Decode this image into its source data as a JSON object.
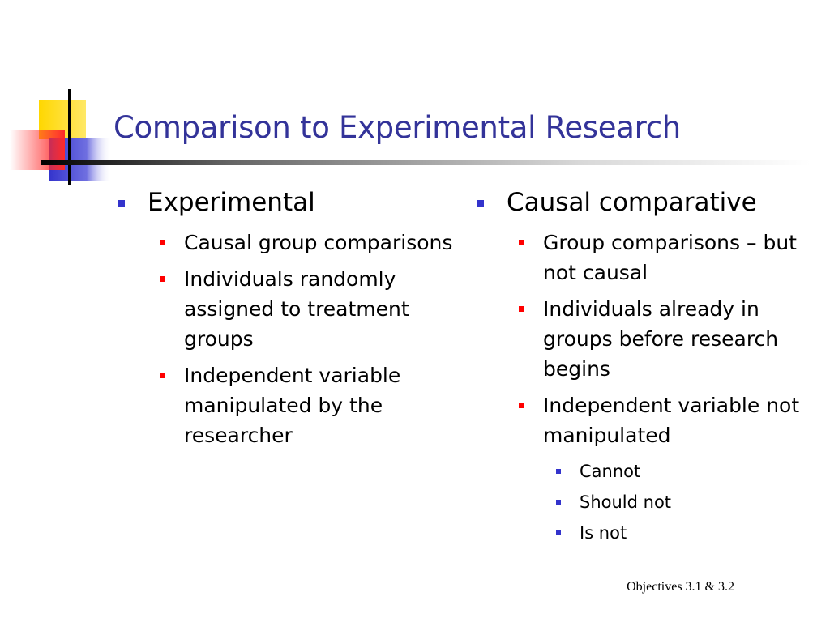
{
  "slide": {
    "title": "Comparison to Experimental Research",
    "footer": "Objectives 3.1 & 3.2",
    "columns": [
      {
        "heading": "Experimental",
        "items": [
          {
            "text": "Causal group comparisons"
          },
          {
            "text": "Individuals randomly assigned to treatment groups"
          },
          {
            "text": "Independent variable manipulated by the researcher"
          }
        ]
      },
      {
        "heading": "Causal comparative",
        "items": [
          {
            "text": "Group comparisons – but not causal"
          },
          {
            "text": "Individuals already in groups before research begins"
          },
          {
            "text": "Independent variable not manipulated",
            "subitems": [
              "Cannot",
              "Should not",
              "Is not"
            ]
          }
        ]
      }
    ]
  },
  "colors": {
    "title": "#333399",
    "level1_bullet": "#3333cc",
    "level2_bullet": "#ff0000",
    "level3_bullet": "#3333cc",
    "logo_yellow": "#ffd700",
    "logo_blue": "#3333cc",
    "logo_red": "#ff3333"
  },
  "icons": {
    "logo": "color-squares-logo",
    "level1_bullet": "square-bullet",
    "level2_bullet": "square-bullet",
    "level3_bullet": "square-bullet"
  }
}
